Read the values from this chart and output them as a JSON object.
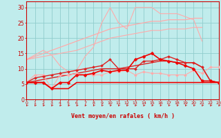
{
  "xlabel": "Vent moyen/en rafales ( km/h )",
  "xlim": [
    0,
    23
  ],
  "ylim": [
    0,
    32
  ],
  "yticks": [
    0,
    5,
    10,
    15,
    20,
    25,
    30
  ],
  "xticks": [
    0,
    1,
    2,
    3,
    4,
    5,
    6,
    7,
    8,
    9,
    10,
    11,
    12,
    13,
    14,
    15,
    16,
    17,
    18,
    19,
    20,
    21,
    22,
    23
  ],
  "bg_color": "#c0ecec",
  "grid_color": "#90cccc",
  "lines": [
    {
      "x": [
        0,
        1,
        2,
        3,
        4,
        5,
        6,
        7,
        8,
        9,
        10,
        11,
        12,
        13,
        14,
        15,
        16,
        17,
        18,
        19,
        20,
        21
      ],
      "y": [
        13,
        14.5,
        16,
        14.5,
        11,
        9,
        9.5,
        14,
        17,
        25,
        30,
        25,
        23,
        30,
        30,
        30,
        28,
        28,
        28,
        27,
        26,
        19
      ],
      "color": "#ffaaaa",
      "lw": 0.8,
      "marker": null,
      "ms": 0
    },
    {
      "x": [
        0,
        1,
        2,
        3,
        4,
        5,
        6,
        7,
        8,
        9,
        10,
        11,
        12,
        13,
        14,
        15,
        16,
        17,
        18,
        19,
        20,
        21
      ],
      "y": [
        13,
        14,
        15,
        16,
        17,
        18,
        19,
        20,
        21,
        22,
        23,
        23.5,
        24,
        24.5,
        25,
        25.5,
        25.5,
        26,
        26,
        26,
        26.5,
        26.5
      ],
      "color": "#ffaaaa",
      "lw": 0.9,
      "marker": null,
      "ms": 0
    },
    {
      "x": [
        0,
        1,
        2,
        3,
        4,
        5,
        6,
        7,
        8,
        9,
        10,
        11,
        12,
        13,
        14,
        15,
        16,
        17,
        18,
        19,
        20,
        21
      ],
      "y": [
        13,
        13.5,
        14,
        14.5,
        15,
        15.5,
        16,
        17,
        18,
        19,
        20,
        20.5,
        21,
        21.5,
        22,
        22.5,
        22.5,
        23,
        23,
        23,
        23.5,
        23.5
      ],
      "color": "#ffaaaa",
      "lw": 0.8,
      "marker": null,
      "ms": 0
    },
    {
      "x": [
        0,
        1,
        2,
        3,
        4,
        5,
        6,
        7,
        8,
        9,
        10,
        11,
        12,
        13,
        14,
        15,
        16,
        17,
        18,
        19,
        20,
        21,
        22,
        23
      ],
      "y": [
        5.5,
        8,
        8,
        3.5,
        8,
        8,
        8.5,
        8,
        8,
        8,
        9,
        9,
        9.5,
        8,
        9,
        8.5,
        8.5,
        8,
        8,
        8,
        9.5,
        8.5,
        10.5,
        10.5
      ],
      "color": "#ffaaaa",
      "lw": 0.8,
      "marker": "D",
      "ms": 2.0
    },
    {
      "x": [
        0,
        1,
        2,
        3,
        4,
        5,
        6,
        7,
        8,
        9,
        10,
        11,
        12,
        13,
        14,
        15,
        16,
        17,
        18,
        19,
        20,
        21,
        22,
        23
      ],
      "y": [
        5.5,
        7,
        7.5,
        8,
        8.5,
        9,
        9.5,
        10,
        10.5,
        11,
        13,
        10,
        10,
        10,
        12.5,
        12.5,
        13,
        14,
        13,
        12,
        12,
        10.5,
        6,
        5.5
      ],
      "color": "#dd2222",
      "lw": 1.0,
      "marker": "D",
      "ms": 2.0
    },
    {
      "x": [
        0,
        1,
        2,
        3,
        4,
        5,
        6,
        7,
        8,
        9,
        10,
        11,
        12,
        13,
        14,
        15,
        16,
        17,
        18,
        19,
        20,
        21,
        22,
        23
      ],
      "y": [
        5.5,
        6,
        6.5,
        7,
        7.5,
        8,
        8.5,
        9,
        9.5,
        10,
        10,
        10,
        10.5,
        11,
        11.5,
        12,
        12.5,
        12.5,
        12,
        12,
        12,
        10.5,
        6,
        5.5
      ],
      "color": "#dd2222",
      "lw": 1.0,
      "marker": null,
      "ms": 0
    },
    {
      "x": [
        0,
        1,
        2,
        3,
        4,
        5,
        6,
        7,
        8,
        9,
        10,
        11,
        12,
        13,
        14,
        15,
        16,
        17,
        18,
        19,
        20,
        21,
        22,
        23
      ],
      "y": [
        5.5,
        5.5,
        5.5,
        3.5,
        5.5,
        5.5,
        8,
        8,
        8.5,
        9.5,
        9,
        9.5,
        9.5,
        13,
        14,
        15,
        13,
        12.5,
        12,
        11,
        10,
        6,
        6,
        5.5
      ],
      "color": "#ee0000",
      "lw": 1.2,
      "marker": "D",
      "ms": 2.5
    },
    {
      "x": [
        0,
        1,
        2,
        3,
        4,
        5,
        6,
        7,
        8,
        9,
        10,
        11,
        12,
        13,
        14,
        15,
        16,
        17,
        18,
        19,
        20,
        21,
        22,
        23
      ],
      "y": [
        5.5,
        5.5,
        5.5,
        3.5,
        3.5,
        3.5,
        5.5,
        5.5,
        5.5,
        5.5,
        5.5,
        5.5,
        5.5,
        5.5,
        5.5,
        5.5,
        5.5,
        5.5,
        5.5,
        5.5,
        5.5,
        5.5,
        5.5,
        5.5
      ],
      "color": "#ee0000",
      "lw": 1.2,
      "marker": null,
      "ms": 0
    }
  ],
  "xlabel_color": "#cc0000",
  "tick_color": "#cc0000",
  "axis_color": "#cc0000"
}
